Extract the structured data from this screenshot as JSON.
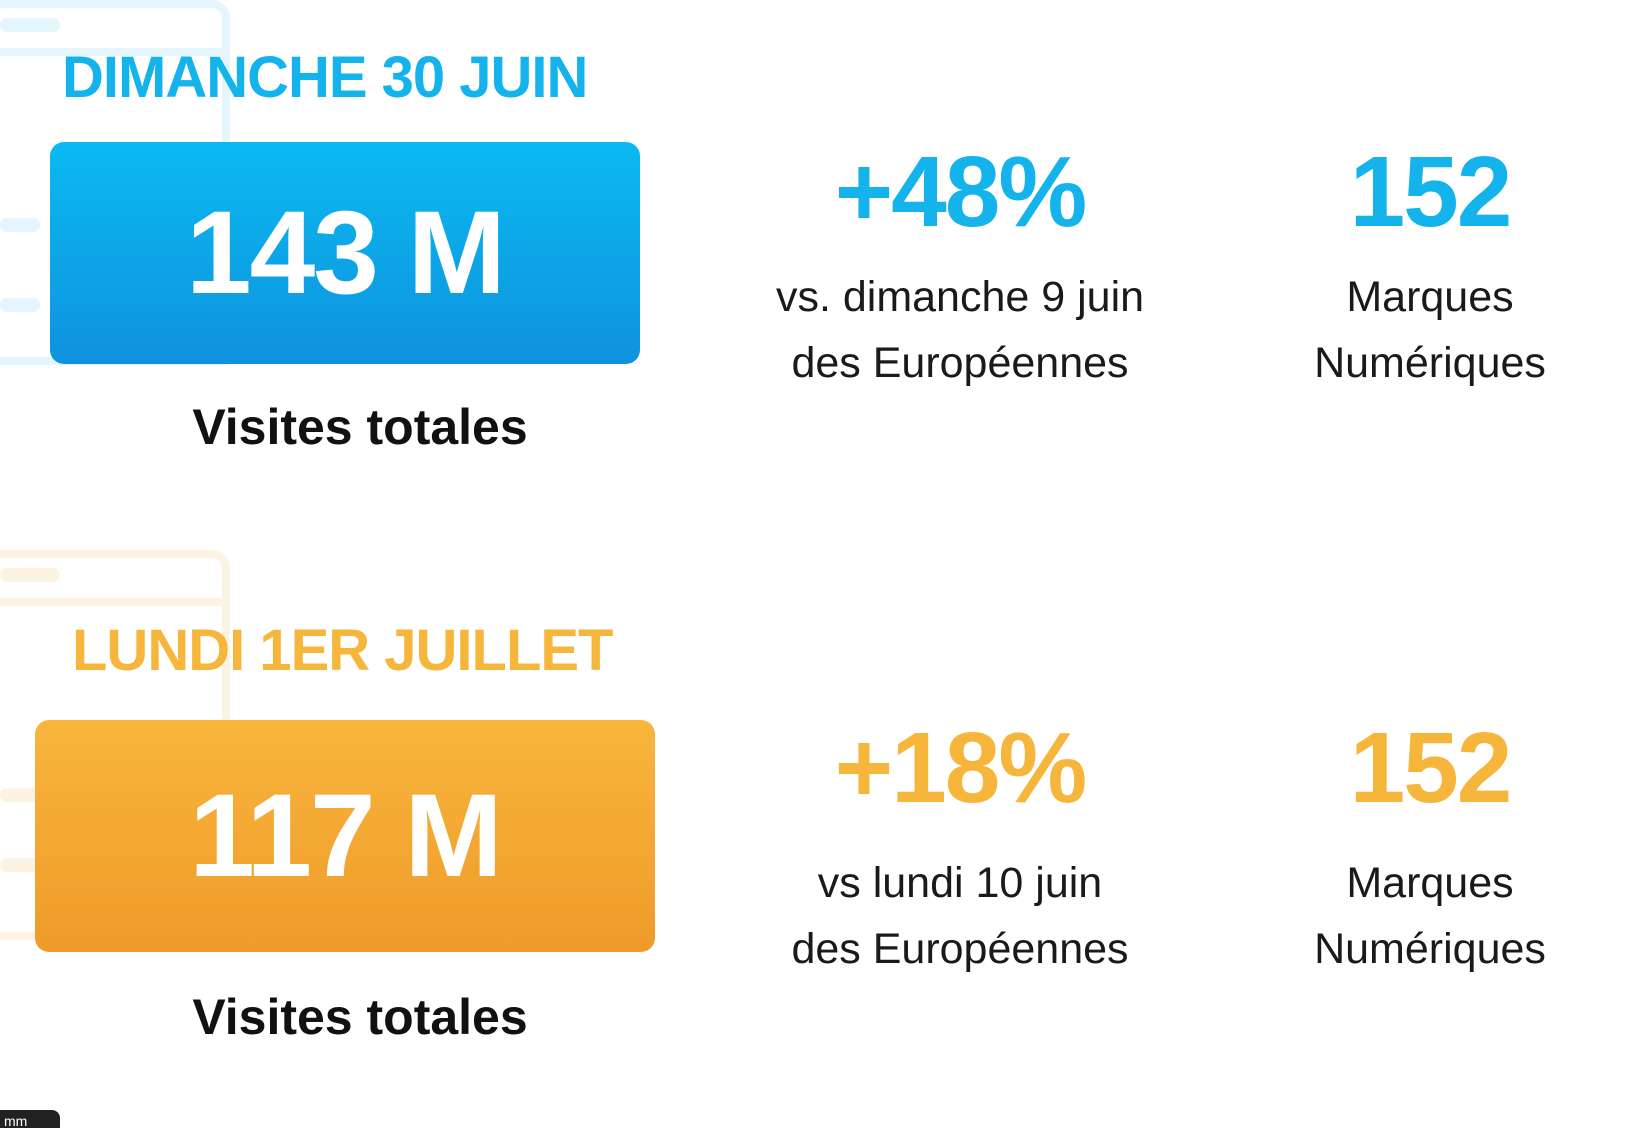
{
  "colors": {
    "blue_accent": "#14b3ec",
    "orange_accent": "#f6b53b",
    "blue_box_top": "#0bbaf2",
    "blue_box_bottom": "#0f92dd",
    "orange_box_top": "#f8b63d",
    "orange_box_bottom": "#ef9a2a"
  },
  "section1": {
    "date": "DIMANCHE 30 JUIN",
    "total_visits": "143 M",
    "caption": "Visites totales",
    "growth_value": "+48%",
    "growth_line1": "vs. dimanche 9 juin",
    "growth_line2": "des Européennes",
    "brands_value": "152",
    "brands_line1": "Marques",
    "brands_line2": "Numériques"
  },
  "section2": {
    "date": "LUNDI 1ER JUILLET",
    "total_visits": "117 M",
    "caption": "Visites totales",
    "growth_value": "+18%",
    "growth_line1": "vs lundi 10 juin",
    "growth_line2": "des Européennes",
    "brands_value": "152",
    "brands_line1": "Marques",
    "brands_line2": "Numériques"
  },
  "corner_tag": "mm"
}
